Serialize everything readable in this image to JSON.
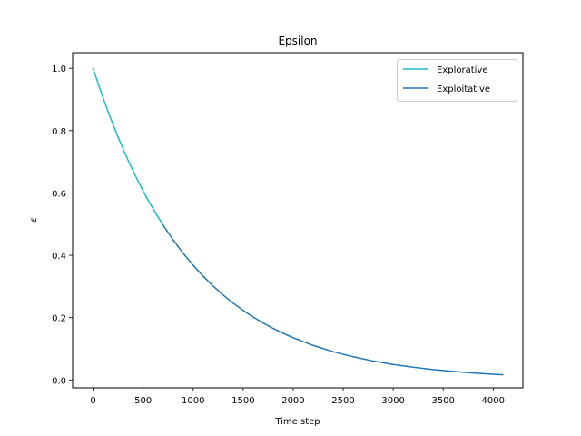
{
  "chart_data": {
    "type": "line",
    "title": "Epsilon",
    "xlabel": "Time step",
    "ylabel": "ε",
    "xlim": [
      -205,
      4297
    ],
    "ylim": [
      -0.0254,
      1.0501
    ],
    "xticks": [
      0,
      500,
      1000,
      1500,
      2000,
      2500,
      3000,
      3500,
      4000
    ],
    "yticks": [
      0.0,
      0.2,
      0.4,
      0.6,
      0.8,
      1.0
    ],
    "ytick_labels": [
      "0.0",
      "0.2",
      "0.4",
      "0.6",
      "0.8",
      "1.0"
    ],
    "grid": false,
    "legend_position": "top-right",
    "series": [
      {
        "name": "Explorative",
        "color": "#17becf",
        "x": [
          0,
          50,
          100,
          150,
          200,
          250,
          300,
          350,
          400,
          450,
          500,
          550,
          600,
          650,
          700
        ],
        "y": [
          1.0,
          0.9512,
          0.9048,
          0.8607,
          0.8187,
          0.7788,
          0.7408,
          0.7047,
          0.6703,
          0.6376,
          0.6065,
          0.5769,
          0.5488,
          0.522,
          0.4966
        ]
      },
      {
        "name": "Exploitative",
        "color": "#1f77b4",
        "x": [
          700,
          800,
          900,
          1000,
          1100,
          1200,
          1300,
          1400,
          1500,
          1600,
          1700,
          1800,
          1900,
          2000,
          2200,
          2400,
          2600,
          2800,
          3000,
          3200,
          3400,
          3600,
          3800,
          4000,
          4095
        ],
        "y": [
          0.4966,
          0.4493,
          0.4066,
          0.3679,
          0.3329,
          0.3012,
          0.2725,
          0.2466,
          0.2231,
          0.2019,
          0.1827,
          0.1653,
          0.1496,
          0.1353,
          0.1108,
          0.0907,
          0.0743,
          0.0608,
          0.0498,
          0.0408,
          0.0334,
          0.0273,
          0.0224,
          0.0183,
          0.0166
        ]
      }
    ]
  }
}
